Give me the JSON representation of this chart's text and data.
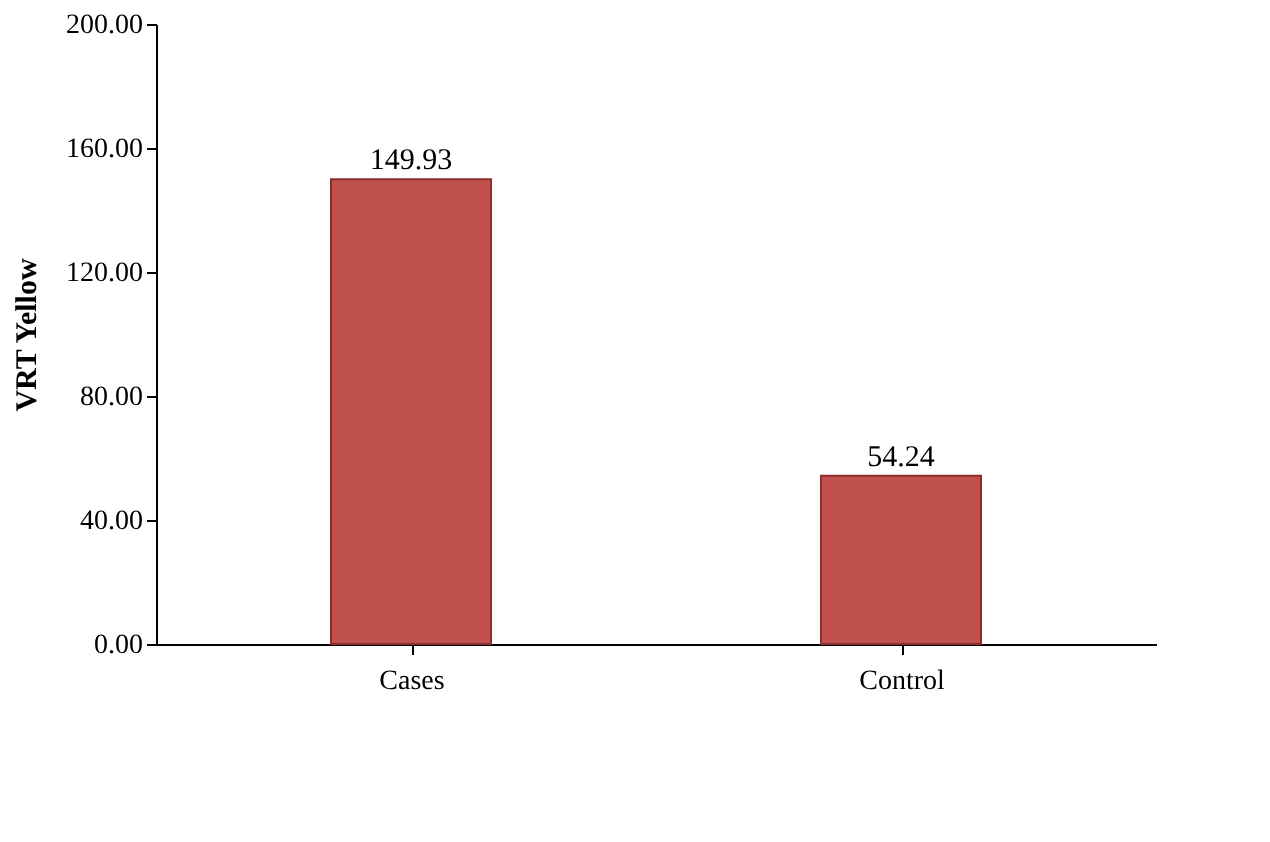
{
  "chart_data": {
    "type": "bar",
    "ylabel": "VRT Yellow",
    "categories": [
      "Cases",
      "Control"
    ],
    "values": [
      149.93,
      54.24
    ],
    "color": "#c0504d",
    "ylim": [
      0,
      200
    ],
    "yticks": [
      {
        "value": 0,
        "label": "0.00"
      },
      {
        "value": 40,
        "label": "40.00"
      },
      {
        "value": 80,
        "label": "80.00"
      },
      {
        "value": 120,
        "label": "120.00"
      },
      {
        "value": 160,
        "label": "160.00"
      },
      {
        "value": 200,
        "label": "200.00"
      }
    ],
    "data_labels": true,
    "grid": false
  }
}
